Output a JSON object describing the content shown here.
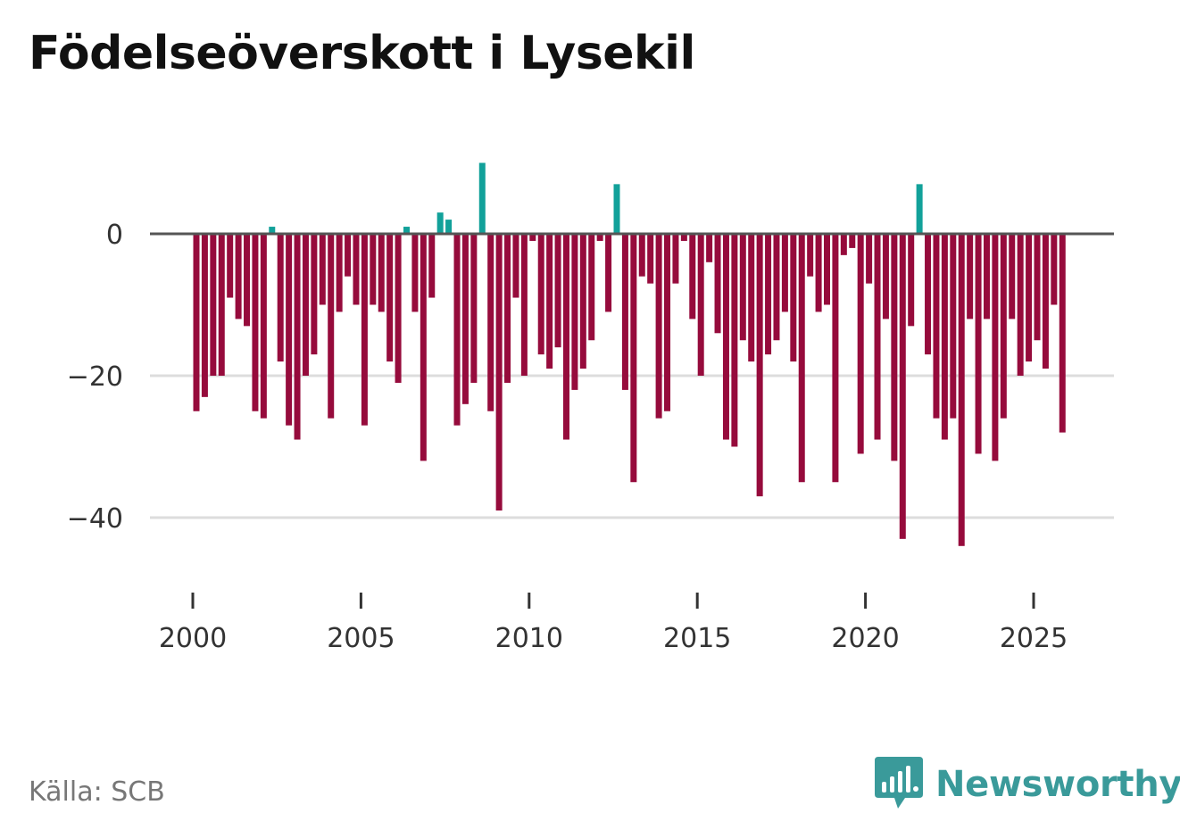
{
  "title": "Födelseöverskott i Lysekil",
  "source": "Källa: SCB",
  "brand": {
    "name": "Newsworthy",
    "icon": "bar-chart-logo-icon",
    "color": "#3a9a9a"
  },
  "chart_data": {
    "type": "bar",
    "title": "Födelseöverskott i Lysekil",
    "xlabel": "",
    "ylabel": "",
    "frequency": "quarterly",
    "start_year": 2000,
    "x_ticks": [
      "2000",
      "2005",
      "2010",
      "2015",
      "2020",
      "2025"
    ],
    "y_ticks": [
      0,
      -20,
      -40
    ],
    "y_tick_labels": [
      "0",
      "−20",
      "−40"
    ],
    "ylim": [
      -48,
      12
    ],
    "grid": true,
    "colors": {
      "positive": "#12a19a",
      "negative": "#960b3c",
      "zero_line": "#555555",
      "grid": "#dddddd"
    },
    "values": [
      -25,
      -23,
      -20,
      -20,
      -9,
      -12,
      -13,
      -25,
      -26,
      1,
      -18,
      -27,
      -29,
      -20,
      -17,
      -10,
      -26,
      -11,
      -6,
      -10,
      -27,
      -10,
      -11,
      -18,
      -21,
      1,
      -11,
      -32,
      -9,
      3,
      2,
      -27,
      -24,
      -21,
      10,
      -25,
      -39,
      -21,
      -9,
      -20,
      -1,
      -17,
      -19,
      -16,
      -29,
      -22,
      -19,
      -15,
      -1,
      -11,
      7,
      -22,
      -35,
      -6,
      -7,
      -26,
      -25,
      -7,
      -1,
      -12,
      -20,
      -4,
      -14,
      -29,
      -30,
      -15,
      -18,
      -37,
      -17,
      -15,
      -11,
      -18,
      -35,
      -6,
      -11,
      -10,
      -35,
      -3,
      -2,
      -31,
      -7,
      -29,
      -12,
      -32,
      -43,
      -13,
      7,
      -17,
      -26,
      -29,
      -26,
      -44,
      -12,
      -31,
      -12,
      -32,
      -26,
      -12,
      -20,
      -18,
      -15,
      -19,
      -10,
      -28
    ]
  }
}
